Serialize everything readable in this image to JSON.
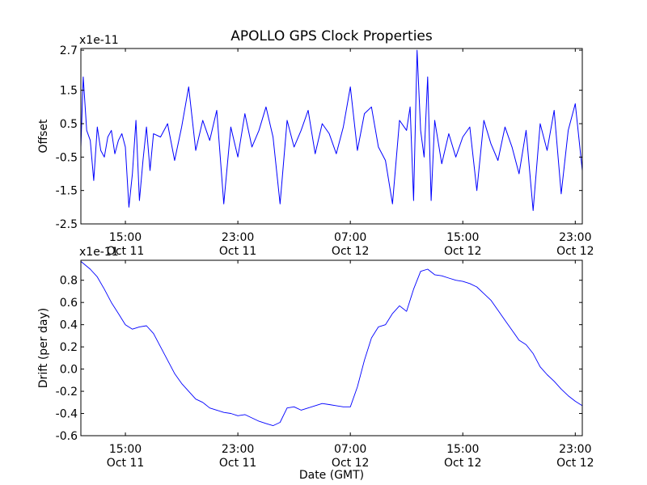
{
  "figure": {
    "title": "APOLLO GPS Clock Properties",
    "line_color": "#0000ff"
  },
  "chart_data": [
    {
      "type": "line",
      "title": "APOLLO GPS Clock Properties",
      "ylabel": "Offset",
      "y_multiplier": "x1e-11",
      "ylim": [
        -2.5,
        2.75
      ],
      "yticks": [
        -2.5,
        -1.5,
        -0.5,
        0.5,
        1.5,
        2.7
      ],
      "ytick_labels": [
        "-2.5",
        "-1.5",
        "-0.5",
        "0.5",
        "1.5",
        "2.7"
      ],
      "xlim": [
        "2010-10-11 11:50",
        "2010-10-12 23:30"
      ],
      "xticks": [
        "2010-10-11 15:00",
        "2010-10-11 23:00",
        "2010-10-12 07:00",
        "2010-10-12 15:00",
        "2010-10-12 23:00"
      ],
      "xtick_labels": [
        [
          "15:00",
          "Oct 11"
        ],
        [
          "23:00",
          "Oct 11"
        ],
        [
          "07:00",
          "Oct 12"
        ],
        [
          "15:00",
          "Oct 12"
        ],
        [
          "23:00",
          "Oct 12"
        ]
      ],
      "grid": false,
      "series": [
        {
          "color": "#0000ff",
          "x": [
            "2010-10-11 11:50",
            "2010-10-11 12:00",
            "2010-10-11 12:15",
            "2010-10-11 12:30",
            "2010-10-11 12:45",
            "2010-10-11 13:00",
            "2010-10-11 13:15",
            "2010-10-11 13:30",
            "2010-10-11 13:45",
            "2010-10-11 14:00",
            "2010-10-11 14:15",
            "2010-10-11 14:30",
            "2010-10-11 14:45",
            "2010-10-11 15:00",
            "2010-10-11 15:15",
            "2010-10-11 15:30",
            "2010-10-11 15:45",
            "2010-10-11 16:00",
            "2010-10-11 16:15",
            "2010-10-11 16:30",
            "2010-10-11 16:45",
            "2010-10-11 17:00",
            "2010-10-11 17:30",
            "2010-10-11 18:00",
            "2010-10-11 18:30",
            "2010-10-11 19:00",
            "2010-10-11 19:30",
            "2010-10-11 20:00",
            "2010-10-11 20:30",
            "2010-10-11 21:00",
            "2010-10-11 21:30",
            "2010-10-11 22:00",
            "2010-10-11 22:30",
            "2010-10-11 23:00",
            "2010-10-11 23:30",
            "2010-10-12 00:00",
            "2010-10-12 00:30",
            "2010-10-12 01:00",
            "2010-10-12 01:30",
            "2010-10-12 02:00",
            "2010-10-12 02:30",
            "2010-10-12 03:00",
            "2010-10-12 03:30",
            "2010-10-12 04:00",
            "2010-10-12 04:30",
            "2010-10-12 05:00",
            "2010-10-12 05:30",
            "2010-10-12 06:00",
            "2010-10-12 06:30",
            "2010-10-12 07:00",
            "2010-10-12 07:30",
            "2010-10-12 08:00",
            "2010-10-12 08:30",
            "2010-10-12 09:00",
            "2010-10-12 09:30",
            "2010-10-12 10:00",
            "2010-10-12 10:30",
            "2010-10-12 11:00",
            "2010-10-12 11:15",
            "2010-10-12 11:30",
            "2010-10-12 11:45",
            "2010-10-12 12:00",
            "2010-10-12 12:15",
            "2010-10-12 12:30",
            "2010-10-12 12:45",
            "2010-10-12 13:00",
            "2010-10-12 13:30",
            "2010-10-12 14:00",
            "2010-10-12 14:30",
            "2010-10-12 15:00",
            "2010-10-12 15:30",
            "2010-10-12 16:00",
            "2010-10-12 16:30",
            "2010-10-12 17:00",
            "2010-10-12 17:30",
            "2010-10-12 18:00",
            "2010-10-12 18:30",
            "2010-10-12 19:00",
            "2010-10-12 19:30",
            "2010-10-12 20:00",
            "2010-10-12 20:30",
            "2010-10-12 21:00",
            "2010-10-12 21:30",
            "2010-10-12 22:00",
            "2010-10-12 22:30",
            "2010-10-12 23:00",
            "2010-10-12 23:30"
          ],
          "y": [
            -0.2,
            1.9,
            0.3,
            0.0,
            -1.2,
            0.4,
            -0.3,
            -0.5,
            0.1,
            0.3,
            -0.4,
            0.0,
            0.2,
            -0.2,
            -2.0,
            -1.0,
            0.6,
            -1.8,
            -0.6,
            0.4,
            -0.9,
            0.2,
            0.1,
            0.5,
            -0.6,
            0.4,
            1.6,
            -0.3,
            0.6,
            0.0,
            0.9,
            -1.9,
            0.4,
            -0.5,
            0.8,
            -0.2,
            0.3,
            1.0,
            0.1,
            -1.9,
            0.6,
            -0.2,
            0.3,
            0.9,
            -0.4,
            0.5,
            0.2,
            -0.4,
            0.4,
            1.6,
            -0.3,
            0.8,
            1.0,
            -0.2,
            -0.6,
            -1.9,
            0.6,
            0.3,
            1.0,
            -1.8,
            2.7,
            0.3,
            -0.5,
            1.9,
            -1.8,
            0.6,
            -0.7,
            0.2,
            -0.5,
            0.1,
            0.4,
            -1.5,
            0.6,
            -0.1,
            -0.6,
            0.4,
            -0.2,
            -1.0,
            0.3,
            -2.1,
            0.5,
            -0.3,
            0.9,
            -1.6,
            0.3,
            1.1,
            -0.9
          ]
        }
      ]
    },
    {
      "type": "line",
      "ylabel": "Drift (per day)",
      "xlabel": "Date (GMT)",
      "y_multiplier": "x1e-11",
      "ylim": [
        -0.6,
        0.98
      ],
      "yticks": [
        -0.6,
        -0.4,
        -0.2,
        0.0,
        0.2,
        0.4,
        0.6,
        0.8
      ],
      "ytick_labels": [
        "-0.6",
        "-0.4",
        "-0.2",
        "0.0",
        "0.2",
        "0.4",
        "0.6",
        "0.8"
      ],
      "xlim": [
        "2010-10-11 11:50",
        "2010-10-12 23:30"
      ],
      "xticks": [
        "2010-10-11 15:00",
        "2010-10-11 23:00",
        "2010-10-12 07:00",
        "2010-10-12 15:00",
        "2010-10-12 23:00"
      ],
      "xtick_labels": [
        [
          "15:00",
          "Oct 11"
        ],
        [
          "23:00",
          "Oct 11"
        ],
        [
          "07:00",
          "Oct 12"
        ],
        [
          "15:00",
          "Oct 12"
        ],
        [
          "23:00",
          "Oct 12"
        ]
      ],
      "grid": false,
      "series": [
        {
          "color": "#0000ff",
          "x": [
            "2010-10-11 11:50",
            "2010-10-11 12:30",
            "2010-10-11 13:00",
            "2010-10-11 13:30",
            "2010-10-11 14:00",
            "2010-10-11 14:30",
            "2010-10-11 15:00",
            "2010-10-11 15:30",
            "2010-10-11 16:00",
            "2010-10-11 16:30",
            "2010-10-11 17:00",
            "2010-10-11 17:30",
            "2010-10-11 18:00",
            "2010-10-11 18:30",
            "2010-10-11 19:00",
            "2010-10-11 19:30",
            "2010-10-11 20:00",
            "2010-10-11 20:30",
            "2010-10-11 21:00",
            "2010-10-11 21:30",
            "2010-10-11 22:00",
            "2010-10-11 22:30",
            "2010-10-11 23:00",
            "2010-10-11 23:30",
            "2010-10-12 00:00",
            "2010-10-12 00:30",
            "2010-10-12 01:00",
            "2010-10-12 01:30",
            "2010-10-12 02:00",
            "2010-10-12 02:30",
            "2010-10-12 03:00",
            "2010-10-12 03:30",
            "2010-10-12 04:00",
            "2010-10-12 04:30",
            "2010-10-12 05:00",
            "2010-10-12 05:30",
            "2010-10-12 06:00",
            "2010-10-12 06:30",
            "2010-10-12 07:00",
            "2010-10-12 07:30",
            "2010-10-12 08:00",
            "2010-10-12 08:30",
            "2010-10-12 09:00",
            "2010-10-12 09:30",
            "2010-10-12 10:00",
            "2010-10-12 10:30",
            "2010-10-12 11:00",
            "2010-10-12 11:30",
            "2010-10-12 12:00",
            "2010-10-12 12:30",
            "2010-10-12 13:00",
            "2010-10-12 13:30",
            "2010-10-12 14:00",
            "2010-10-12 14:30",
            "2010-10-12 15:00",
            "2010-10-12 15:30",
            "2010-10-12 16:00",
            "2010-10-12 16:30",
            "2010-10-12 17:00",
            "2010-10-12 17:30",
            "2010-10-12 18:00",
            "2010-10-12 18:30",
            "2010-10-12 19:00",
            "2010-10-12 19:30",
            "2010-10-12 20:00",
            "2010-10-12 20:30",
            "2010-10-12 21:00",
            "2010-10-12 21:30",
            "2010-10-12 22:00",
            "2010-10-12 22:30",
            "2010-10-12 23:00",
            "2010-10-12 23:30"
          ],
          "y": [
            0.97,
            0.9,
            0.83,
            0.72,
            0.6,
            0.5,
            0.4,
            0.36,
            0.38,
            0.39,
            0.32,
            0.2,
            0.08,
            -0.04,
            -0.13,
            -0.2,
            -0.27,
            -0.3,
            -0.35,
            -0.37,
            -0.39,
            -0.4,
            -0.42,
            -0.41,
            -0.44,
            -0.47,
            -0.49,
            -0.51,
            -0.48,
            -0.35,
            -0.34,
            -0.37,
            -0.35,
            -0.33,
            -0.31,
            -0.32,
            -0.33,
            -0.34,
            -0.34,
            -0.16,
            0.08,
            0.28,
            0.38,
            0.4,
            0.5,
            0.57,
            0.52,
            0.72,
            0.88,
            0.9,
            0.85,
            0.84,
            0.82,
            0.8,
            0.79,
            0.77,
            0.74,
            0.68,
            0.62,
            0.53,
            0.44,
            0.35,
            0.26,
            0.22,
            0.14,
            0.02,
            -0.05,
            -0.11,
            -0.18,
            -0.24,
            -0.29,
            -0.33
          ]
        }
      ]
    }
  ]
}
